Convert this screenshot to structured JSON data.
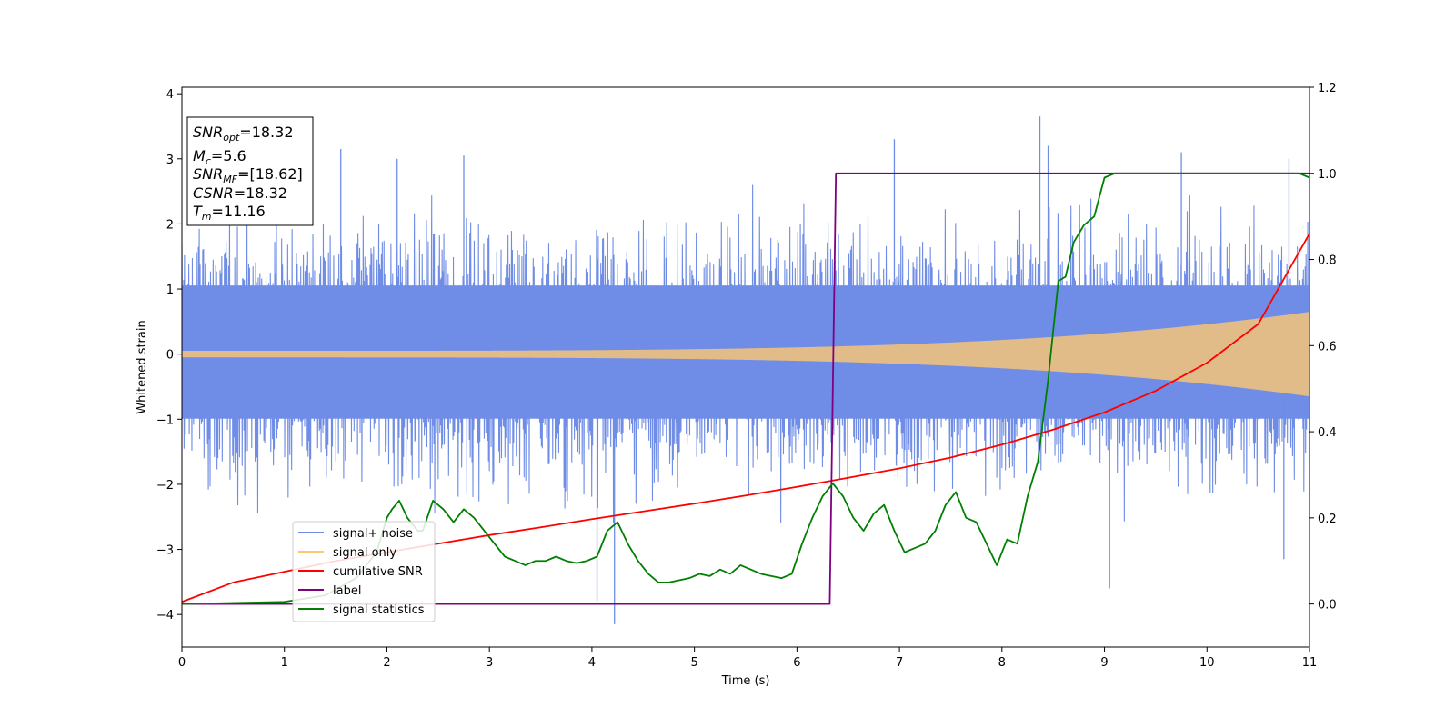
{
  "chart_data": {
    "type": "line",
    "xlabel": "Time (s)",
    "ylabel": "Whitened strain",
    "xlim": [
      0,
      11
    ],
    "ylim_left": [
      -4.5,
      4.1
    ],
    "ylim_right": [
      -0.1,
      1.2
    ],
    "x_ticks": [
      "0",
      "1",
      "2",
      "3",
      "4",
      "5",
      "6",
      "7",
      "8",
      "9",
      "10",
      "11"
    ],
    "y_ticks_left": [
      "−4",
      "−3",
      "−2",
      "−1",
      "0",
      "1",
      "2",
      "3",
      "4"
    ],
    "y_ticks_right": [
      "0.0",
      "0.2",
      "0.4",
      "0.6",
      "0.8",
      "1.0",
      "1.2"
    ],
    "grid": false,
    "legend": {
      "placement": "lower-left",
      "entries": [
        {
          "label": "signal+ noise",
          "color": "#6f8de6"
        },
        {
          "label": "signal only",
          "color": "#ffc870"
        },
        {
          "label": "cumilative SNR",
          "color": "#ff0000"
        },
        {
          "label": "label",
          "color": "#800080"
        },
        {
          "label": "signal statistics",
          "color": "#007f00"
        }
      ]
    },
    "annotation": {
      "lines": [
        {
          "base": "SNR",
          "sub": "opt",
          "value": "=18.32"
        },
        {
          "base": "M",
          "sub": "c",
          "value": "=5.6"
        },
        {
          "base": "SNR",
          "sub": "MF",
          "value": "=[18.62]"
        },
        {
          "base": "CSNR",
          "sub": "",
          "value": "=18.32"
        },
        {
          "base": "T",
          "sub": "m",
          "value": "=11.16"
        }
      ]
    },
    "series": [
      {
        "name": "signal+ noise",
        "axis": "left",
        "color": "#6f8de6",
        "kind": "noise",
        "envelope_sigma": 1.0,
        "dense_band": [
          -1.6,
          1.7
        ],
        "peak_spikes": [
          {
            "x": 1.55,
            "y": 3.15
          },
          {
            "x": 2.1,
            "y": 3.0
          },
          {
            "x": 2.75,
            "y": 3.05
          },
          {
            "x": 4.05,
            "y": -3.8
          },
          {
            "x": 4.22,
            "y": -4.15
          },
          {
            "x": 6.95,
            "y": 3.3
          },
          {
            "x": 8.37,
            "y": 3.65
          },
          {
            "x": 8.45,
            "y": 3.2
          },
          {
            "x": 9.05,
            "y": -3.6
          },
          {
            "x": 9.75,
            "y": 3.1
          },
          {
            "x": 10.8,
            "y": 3.0
          },
          {
            "x": 10.75,
            "y": -3.15
          }
        ]
      },
      {
        "name": "signal only",
        "axis": "left",
        "color": "#ffc870",
        "kind": "chirp",
        "amplitude_start": 0.05,
        "amplitude_end": 0.65
      },
      {
        "name": "cumilative SNR",
        "axis": "right",
        "color": "#ff0000",
        "x": [
          0,
          0.5,
          1,
          1.5,
          2,
          2.5,
          3,
          3.5,
          4,
          4.5,
          5,
          5.5,
          6,
          6.5,
          7,
          7.5,
          8,
          8.5,
          9,
          9.5,
          10,
          10.5,
          11
        ],
        "y": [
          0.005,
          0.05,
          0.075,
          0.1,
          0.12,
          0.14,
          0.16,
          0.178,
          0.197,
          0.215,
          0.233,
          0.252,
          0.272,
          0.293,
          0.315,
          0.34,
          0.37,
          0.405,
          0.445,
          0.495,
          0.56,
          0.65,
          0.86
        ]
      },
      {
        "name": "label",
        "axis": "right",
        "color": "#800080",
        "x": [
          0,
          6.32,
          6.38,
          11
        ],
        "y": [
          0.0,
          0.0,
          1.0,
          1.0
        ]
      },
      {
        "name": "signal statistics",
        "axis": "right",
        "color": "#007f00",
        "x": [
          0,
          1.0,
          1.4,
          1.7,
          1.9,
          2.0,
          2.05,
          2.12,
          2.2,
          2.3,
          2.35,
          2.45,
          2.55,
          2.65,
          2.75,
          2.85,
          2.95,
          3.05,
          3.15,
          3.25,
          3.35,
          3.45,
          3.55,
          3.65,
          3.75,
          3.85,
          3.95,
          4.05,
          4.15,
          4.25,
          4.35,
          4.45,
          4.55,
          4.65,
          4.75,
          4.85,
          4.95,
          5.05,
          5.15,
          5.25,
          5.35,
          5.45,
          5.55,
          5.65,
          5.75,
          5.85,
          5.95,
          6.05,
          6.15,
          6.25,
          6.35,
          6.45,
          6.55,
          6.65,
          6.75,
          6.85,
          6.95,
          7.05,
          7.15,
          7.25,
          7.35,
          7.45,
          7.55,
          7.65,
          7.75,
          7.85,
          7.95,
          8.05,
          8.15,
          8.25,
          8.35,
          8.45,
          8.55,
          8.62,
          8.7,
          8.8,
          8.9,
          9.0,
          9.1,
          9.3,
          9.6,
          10.0,
          10.5,
          10.9,
          11.0
        ],
        "y": [
          0.0,
          0.005,
          0.02,
          0.06,
          0.12,
          0.2,
          0.22,
          0.24,
          0.2,
          0.17,
          0.17,
          0.24,
          0.22,
          0.19,
          0.22,
          0.2,
          0.17,
          0.14,
          0.11,
          0.1,
          0.09,
          0.1,
          0.1,
          0.11,
          0.1,
          0.095,
          0.1,
          0.11,
          0.17,
          0.19,
          0.14,
          0.1,
          0.07,
          0.05,
          0.05,
          0.055,
          0.06,
          0.07,
          0.065,
          0.08,
          0.07,
          0.09,
          0.08,
          0.07,
          0.065,
          0.06,
          0.07,
          0.14,
          0.2,
          0.25,
          0.28,
          0.25,
          0.2,
          0.17,
          0.21,
          0.23,
          0.17,
          0.12,
          0.13,
          0.14,
          0.17,
          0.23,
          0.26,
          0.2,
          0.19,
          0.14,
          0.09,
          0.15,
          0.14,
          0.25,
          0.33,
          0.52,
          0.75,
          0.76,
          0.84,
          0.88,
          0.9,
          0.99,
          1.0,
          1.0,
          1.0,
          1.0,
          1.0,
          1.0,
          0.99
        ]
      }
    ]
  }
}
